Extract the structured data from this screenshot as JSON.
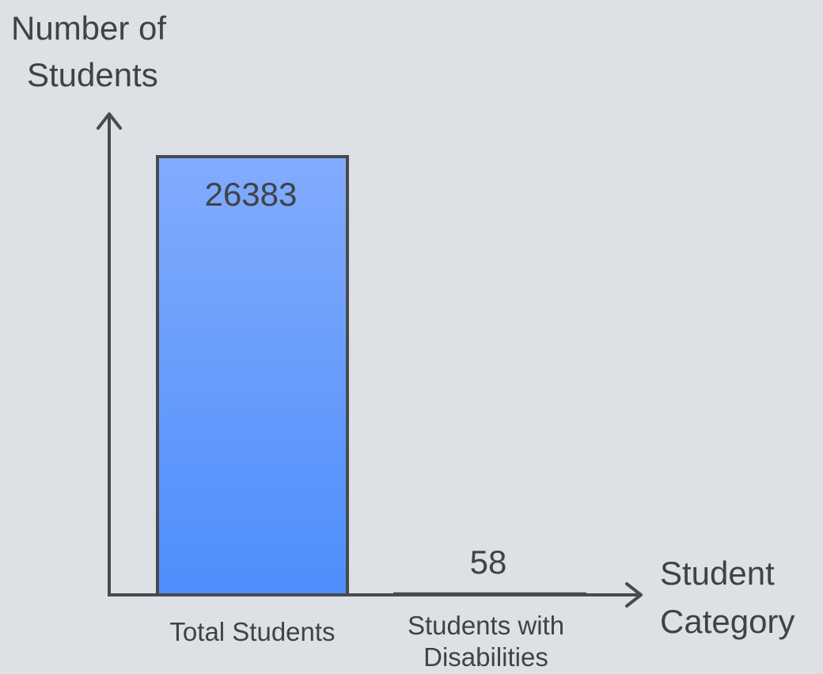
{
  "chart_data": {
    "type": "bar",
    "categories": [
      "Total Students",
      "Students with Disabilities"
    ],
    "category_lines": [
      [
        "Total Students"
      ],
      [
        "Students with",
        "Disabilities"
      ]
    ],
    "values": [
      26383,
      58
    ],
    "data_labels": [
      "26383",
      "58"
    ],
    "ylabel_lines": [
      "Number of",
      "Students"
    ],
    "xlabel_lines": [
      "Student",
      "Category"
    ],
    "ylim": [
      0,
      26383
    ],
    "grid": false,
    "legend": "none",
    "colors": {
      "bar_top": "#82abfd",
      "bar_bottom": "#4d8efb",
      "bar_stroke": "#474b50",
      "axis": "#474b50",
      "text": "#3f4347",
      "background": "#dde1e6"
    }
  }
}
